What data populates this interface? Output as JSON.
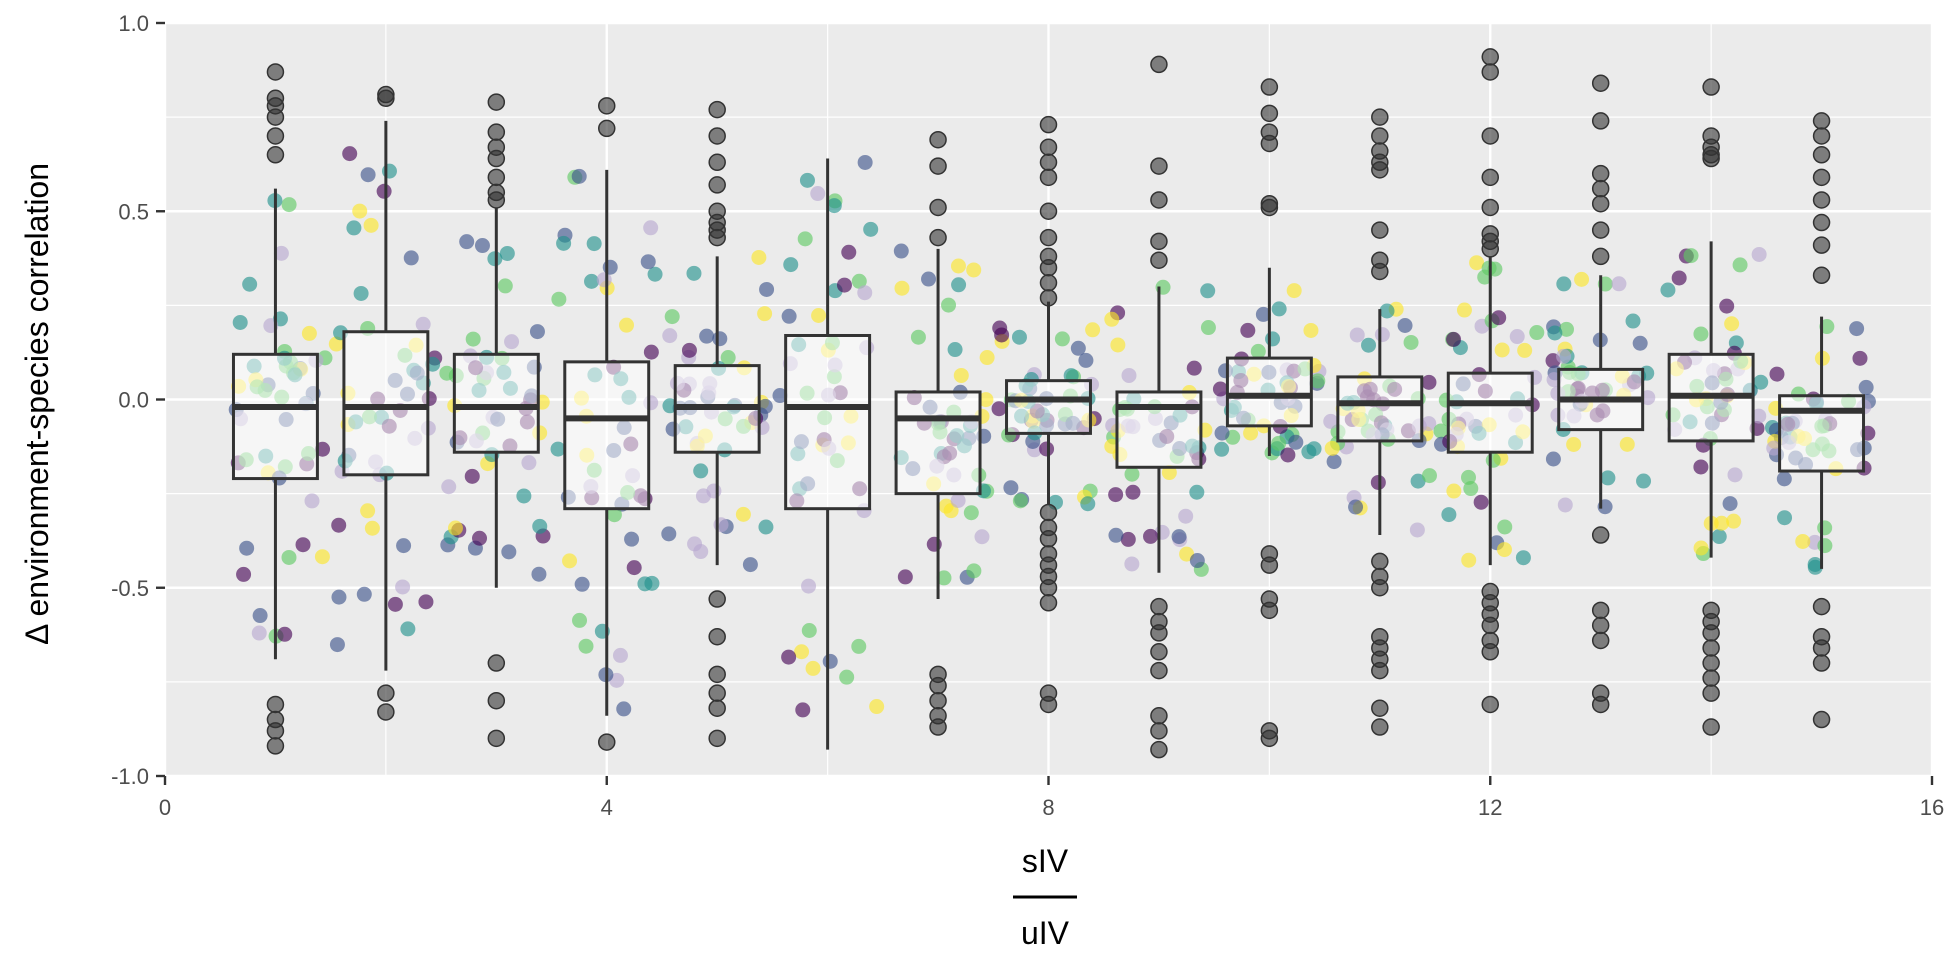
{
  "chart_data": {
    "type": "box",
    "ylabel": "Δ environment-species correlation",
    "xlabel_numerator": "sIV",
    "xlabel_denominator": "uIV",
    "xlim": [
      0,
      16
    ],
    "ylim": [
      -1.0,
      1.0
    ],
    "x_ticks": [
      0,
      4,
      8,
      12,
      16
    ],
    "x_tick_labels": [
      "0",
      "4",
      "8",
      "12",
      "16"
    ],
    "y_ticks": [
      -1.0,
      -0.5,
      0.0,
      0.5,
      1.0
    ],
    "y_tick_labels": [
      "-1.0",
      "-0.5",
      "0.0",
      "0.5",
      "1.0"
    ],
    "grid": true,
    "legend": "none",
    "point_palette": [
      "#440154",
      "#3b528b",
      "#21918c",
      "#5ec962",
      "#fde725",
      "#b8a8d0"
    ],
    "outlier_color": "#333333",
    "panel_background": "#ebebeb",
    "boxes": [
      {
        "x": 1,
        "q1": -0.21,
        "median": -0.02,
        "q3": 0.12,
        "whisker_low": -0.69,
        "whisker_high": 0.56,
        "outliers": [
          -0.92,
          -0.88,
          -0.85,
          -0.81,
          0.65,
          0.7,
          0.75,
          0.78,
          0.8,
          0.87
        ]
      },
      {
        "x": 2,
        "q1": -0.2,
        "median": -0.02,
        "q3": 0.18,
        "whisker_low": -0.72,
        "whisker_high": 0.74,
        "outliers": [
          -0.83,
          -0.78,
          0.8,
          0.81
        ]
      },
      {
        "x": 3,
        "q1": -0.14,
        "median": -0.02,
        "q3": 0.12,
        "whisker_low": -0.5,
        "whisker_high": 0.51,
        "outliers": [
          -0.9,
          -0.8,
          -0.7,
          0.53,
          0.55,
          0.59,
          0.64,
          0.67,
          0.71,
          0.79
        ]
      },
      {
        "x": 4,
        "q1": -0.29,
        "median": -0.05,
        "q3": 0.1,
        "whisker_low": -0.84,
        "whisker_high": 0.61,
        "outliers": [
          -0.91,
          0.72,
          0.78
        ]
      },
      {
        "x": 5,
        "q1": -0.14,
        "median": -0.02,
        "q3": 0.09,
        "whisker_low": -0.44,
        "whisker_high": 0.38,
        "outliers": [
          -0.9,
          -0.82,
          -0.78,
          -0.73,
          -0.63,
          -0.53,
          0.43,
          0.45,
          0.47,
          0.5,
          0.57,
          0.63,
          0.7,
          0.77
        ]
      },
      {
        "x": 6,
        "q1": -0.29,
        "median": -0.02,
        "q3": 0.17,
        "whisker_low": -0.93,
        "whisker_high": 0.64,
        "outliers": []
      },
      {
        "x": 7,
        "q1": -0.25,
        "median": -0.05,
        "q3": 0.02,
        "whisker_low": -0.53,
        "whisker_high": 0.4,
        "outliers": [
          -0.87,
          -0.84,
          -0.8,
          -0.76,
          -0.73,
          0.43,
          0.51,
          0.62,
          0.69
        ]
      },
      {
        "x": 8,
        "q1": -0.09,
        "median": 0.0,
        "q3": 0.05,
        "whisker_low": -0.28,
        "whisker_high": 0.26,
        "outliers": [
          -0.81,
          -0.78,
          -0.54,
          -0.5,
          -0.47,
          -0.44,
          -0.41,
          -0.37,
          -0.34,
          -0.3,
          0.27,
          0.31,
          0.35,
          0.38,
          0.43,
          0.5,
          0.59,
          0.63,
          0.67,
          0.73
        ]
      },
      {
        "x": 9,
        "q1": -0.18,
        "median": -0.02,
        "q3": 0.02,
        "whisker_low": -0.46,
        "whisker_high": 0.3,
        "outliers": [
          -0.93,
          -0.88,
          -0.84,
          -0.72,
          -0.67,
          -0.62,
          -0.59,
          -0.55,
          0.37,
          0.42,
          0.53,
          0.62,
          0.89
        ]
      },
      {
        "x": 10,
        "q1": -0.07,
        "median": 0.01,
        "q3": 0.11,
        "whisker_low": -0.15,
        "whisker_high": 0.35,
        "outliers": [
          -0.9,
          -0.88,
          -0.56,
          -0.53,
          -0.44,
          -0.41,
          0.51,
          0.52,
          0.68,
          0.71,
          0.76,
          0.83
        ]
      },
      {
        "x": 11,
        "q1": -0.11,
        "median": -0.01,
        "q3": 0.06,
        "whisker_low": -0.36,
        "whisker_high": 0.24,
        "outliers": [
          -0.87,
          -0.82,
          -0.72,
          -0.69,
          -0.66,
          -0.63,
          -0.5,
          -0.47,
          -0.43,
          0.34,
          0.37,
          0.45,
          0.61,
          0.63,
          0.66,
          0.7,
          0.75
        ]
      },
      {
        "x": 12,
        "q1": -0.14,
        "median": -0.01,
        "q3": 0.07,
        "whisker_low": -0.44,
        "whisker_high": 0.38,
        "outliers": [
          -0.81,
          -0.67,
          -0.64,
          -0.6,
          -0.57,
          -0.54,
          -0.51,
          0.4,
          0.42,
          0.44,
          0.51,
          0.59,
          0.7,
          0.87,
          0.91
        ]
      },
      {
        "x": 13,
        "q1": -0.08,
        "median": 0.0,
        "q3": 0.08,
        "whisker_low": -0.29,
        "whisker_high": 0.33,
        "outliers": [
          -0.81,
          -0.78,
          -0.64,
          -0.6,
          -0.56,
          -0.36,
          0.38,
          0.45,
          0.52,
          0.56,
          0.6,
          0.74,
          0.84
        ]
      },
      {
        "x": 14,
        "q1": -0.11,
        "median": 0.01,
        "q3": 0.12,
        "whisker_low": -0.42,
        "whisker_high": 0.42,
        "outliers": [
          -0.87,
          -0.78,
          -0.74,
          -0.7,
          -0.66,
          -0.62,
          -0.59,
          -0.56,
          0.64,
          0.65,
          0.67,
          0.7,
          0.83
        ]
      },
      {
        "x": 15,
        "q1": -0.19,
        "median": -0.03,
        "q3": 0.01,
        "whisker_low": -0.45,
        "whisker_high": 0.22,
        "outliers": [
          -0.85,
          -0.7,
          -0.66,
          -0.63,
          -0.55,
          0.33,
          0.41,
          0.47,
          0.53,
          0.59,
          0.65,
          0.7,
          0.74
        ]
      }
    ]
  }
}
